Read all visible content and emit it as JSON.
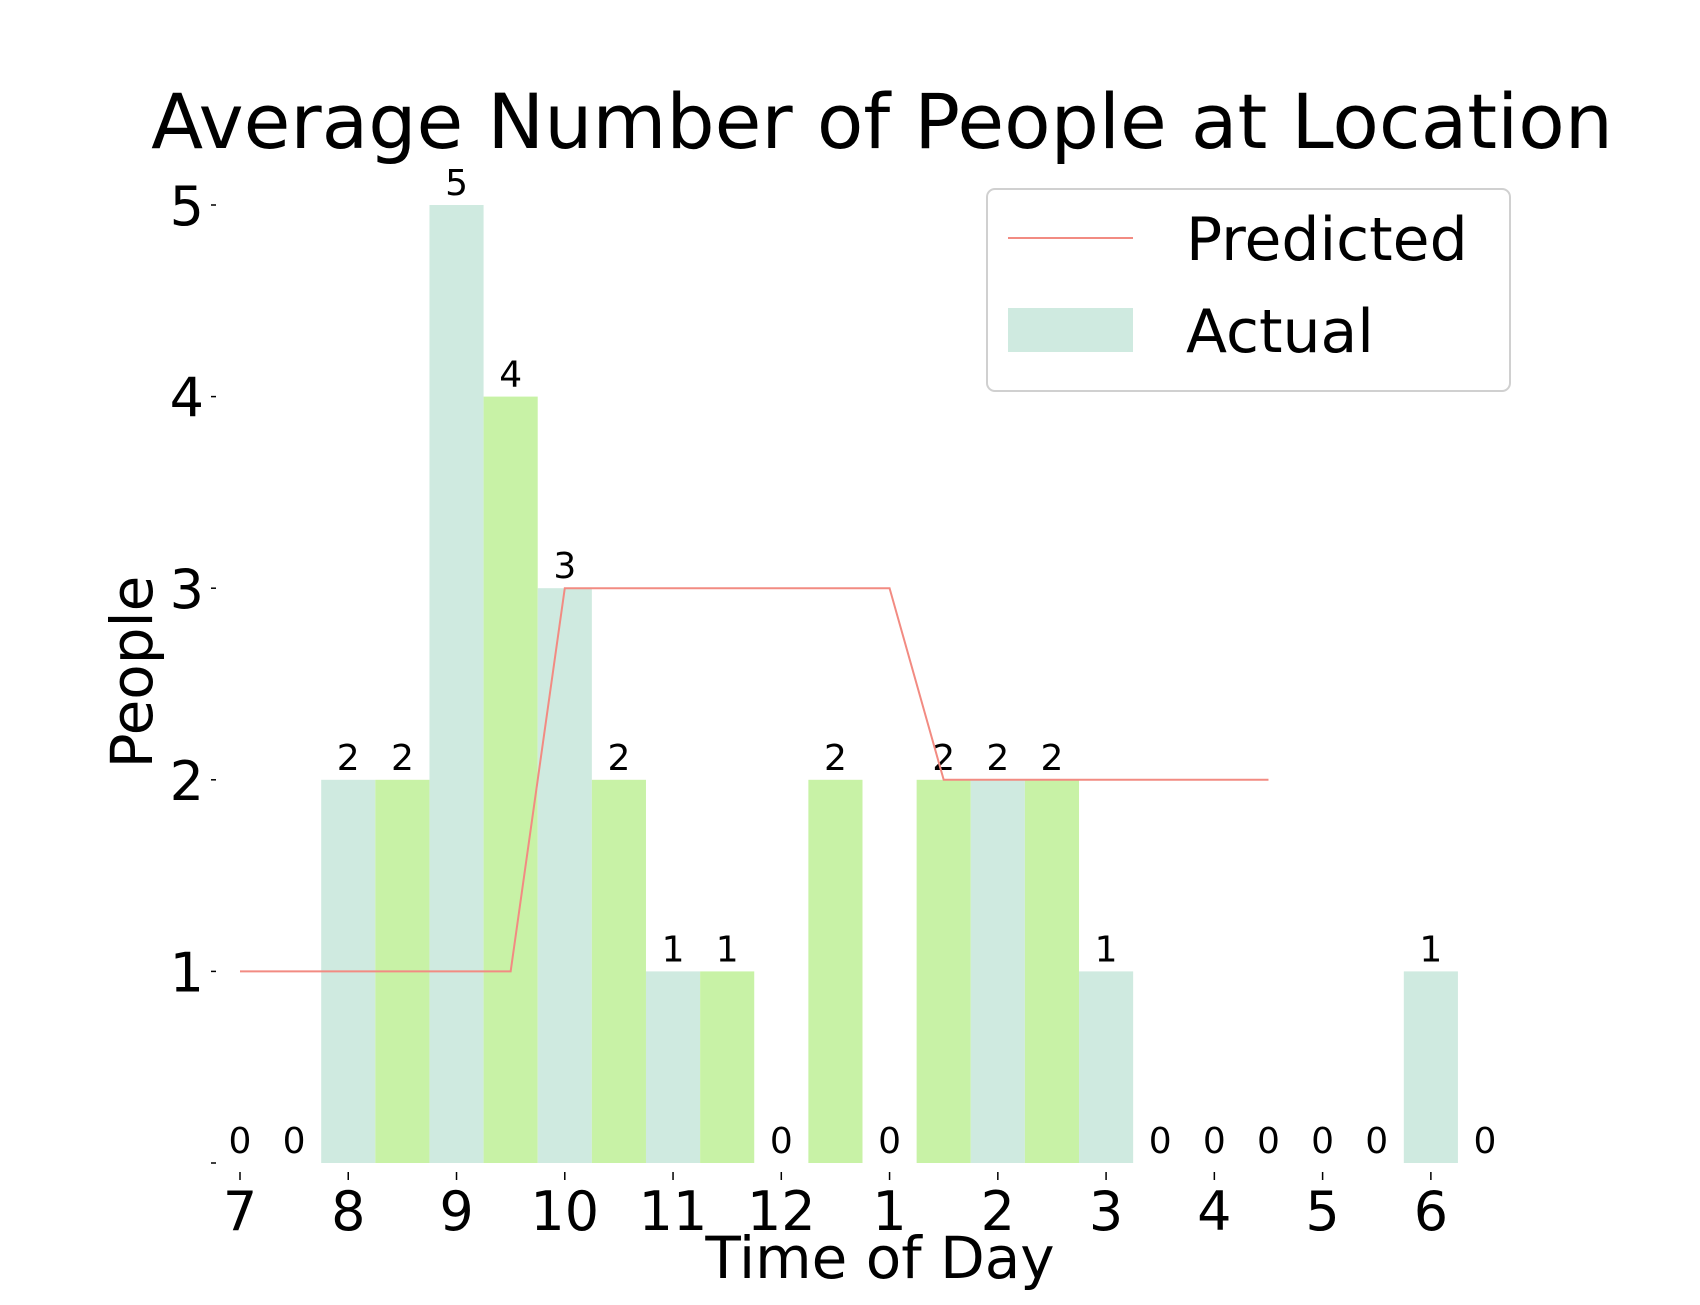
{
  "chart_data": {
    "type": "bar",
    "title": "Average Number of People at Location",
    "xlabel": "Time of Day",
    "ylabel": "People",
    "ylim": [
      0,
      5
    ],
    "y_ticks": [
      "1",
      "2",
      "3",
      "4",
      "5"
    ],
    "x_tick_labels": [
      "7",
      "8",
      "9",
      "10",
      "11",
      "12",
      "1",
      "2",
      "3",
      "4",
      "5",
      "6"
    ],
    "x_range": [
      7,
      18.5
    ],
    "grid": false,
    "legend_position": "top-right",
    "colors": {
      "actual_light": "#cfeae0",
      "actual_green": "#c8f2a6",
      "predicted_line": "#f28b82"
    },
    "series": [
      {
        "name": "Actual",
        "type": "bar",
        "x": [
          7,
          7.5,
          8,
          8.5,
          9,
          9.5,
          10,
          10.5,
          11,
          11.5,
          12,
          12.5,
          13,
          13.5,
          14,
          14.5,
          15,
          15.5,
          16,
          16.5,
          17,
          17.5,
          18,
          18.5
        ],
        "values": [
          0,
          0,
          2,
          2,
          5,
          4,
          3,
          2,
          1,
          1,
          0,
          2,
          0,
          2,
          2,
          2,
          1,
          0,
          0,
          0,
          0,
          0,
          1,
          0
        ]
      },
      {
        "name": "Predicted",
        "type": "line",
        "x": [
          7,
          9.5,
          10,
          13,
          13.5,
          16.5
        ],
        "values": [
          1,
          1,
          3,
          3,
          2,
          2
        ]
      }
    ]
  }
}
